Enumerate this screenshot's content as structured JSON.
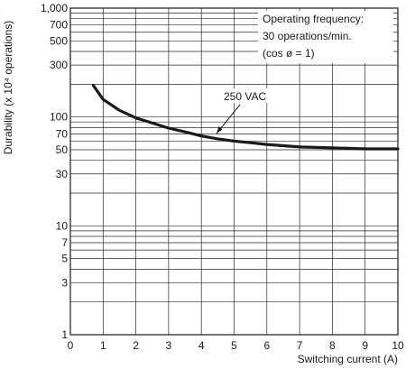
{
  "chart_data": {
    "type": "line",
    "title": "",
    "xlabel": "Switching current (A)",
    "ylabel": "Durability (x 10⁴ operations)",
    "x_scale": "linear",
    "y_scale": "log",
    "xlim": [
      0,
      10
    ],
    "ylim": [
      1,
      1000
    ],
    "grid": true,
    "x_ticks": [
      "0",
      "1",
      "2",
      "3",
      "4",
      "5",
      "6",
      "7",
      "8",
      "9",
      "10"
    ],
    "y_ticks": [
      {
        "value": 1,
        "label": "1"
      },
      {
        "value": 3,
        "label": "3"
      },
      {
        "value": 5,
        "label": "5"
      },
      {
        "value": 7,
        "label": "7"
      },
      {
        "value": 10,
        "label": "10"
      },
      {
        "value": 30,
        "label": "30"
      },
      {
        "value": 50,
        "label": "50"
      },
      {
        "value": 70,
        "label": "70"
      },
      {
        "value": 100,
        "label": "100"
      },
      {
        "value": 300,
        "label": "300"
      },
      {
        "value": 500,
        "label": "500"
      },
      {
        "value": 700,
        "label": "700"
      },
      {
        "value": 1000,
        "label": "1,000"
      }
    ],
    "series": [
      {
        "name": "250 VAC",
        "x": [
          0.7,
          1.0,
          1.5,
          2.0,
          2.5,
          3.0,
          3.5,
          4.0,
          4.5,
          5.0,
          5.5,
          6.0,
          7.0,
          8.0,
          9.0,
          10.0
        ],
        "y": [
          195,
          145,
          115,
          98,
          88,
          79,
          73,
          67,
          63,
          60,
          58,
          56,
          53,
          52,
          51,
          51
        ]
      }
    ],
    "annotations": {
      "conditions": [
        "Operating frequency:",
        "30 operations/min.",
        "(cos ø = 1)"
      ],
      "series_label": "250 VAC"
    }
  }
}
